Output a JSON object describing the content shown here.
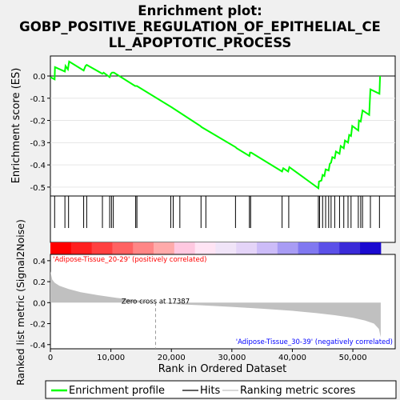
{
  "chart_data": {
    "type": "line",
    "title_lines": [
      "Enrichment plot:",
      "GOBP_POSITIVE_REGULATION_OF_EPITHELIAL_CE",
      "LL_APOPTOTIC_PROCESS"
    ],
    "es_panel": {
      "ylabel": "Enrichment score (ES)",
      "yticks": [
        0.0,
        -0.1,
        -0.2,
        -0.3,
        -0.4,
        -0.5
      ],
      "ytick_labels": [
        "0.0",
        "-0.1",
        "-0.2",
        "-0.3",
        "-0.4",
        "-0.5"
      ],
      "ylim": [
        -0.54,
        0.09
      ],
      "series": {
        "name": "Enrichment profile",
        "color": "#00ff00",
        "points": [
          [
            0,
            -0.005
          ],
          [
            700,
            -0.015
          ],
          [
            750,
            0.04
          ],
          [
            2400,
            0.02
          ],
          [
            2500,
            0.045
          ],
          [
            2900,
            0.03
          ],
          [
            3100,
            0.065
          ],
          [
            5500,
            0.025
          ],
          [
            5800,
            0.045
          ],
          [
            6000,
            0.05
          ],
          [
            8600,
            0.01
          ],
          [
            8800,
            0.015
          ],
          [
            9800,
            -0.005
          ],
          [
            10000,
            0.01
          ],
          [
            10200,
            0.015
          ],
          [
            10500,
            0.015
          ],
          [
            14000,
            -0.045
          ],
          [
            14300,
            -0.045
          ],
          [
            20000,
            -0.14
          ],
          [
            24800,
            -0.225
          ],
          [
            25000,
            -0.23
          ],
          [
            30600,
            -0.32
          ],
          [
            30800,
            -0.325
          ],
          [
            32900,
            -0.36
          ],
          [
            33000,
            -0.345
          ],
          [
            33200,
            -0.345
          ],
          [
            38300,
            -0.43
          ],
          [
            38500,
            -0.415
          ],
          [
            39300,
            -0.43
          ],
          [
            39500,
            -0.41
          ],
          [
            44300,
            -0.505
          ],
          [
            44400,
            -0.475
          ],
          [
            44800,
            -0.47
          ],
          [
            45000,
            -0.445
          ],
          [
            45300,
            -0.45
          ],
          [
            45500,
            -0.42
          ],
          [
            46000,
            -0.425
          ],
          [
            46200,
            -0.395
          ],
          [
            46400,
            -0.39
          ],
          [
            46600,
            -0.365
          ],
          [
            47000,
            -0.37
          ],
          [
            47200,
            -0.34
          ],
          [
            47800,
            -0.35
          ],
          [
            48000,
            -0.315
          ],
          [
            48500,
            -0.325
          ],
          [
            48700,
            -0.29
          ],
          [
            49200,
            -0.3
          ],
          [
            49400,
            -0.265
          ],
          [
            49700,
            -0.27
          ],
          [
            49900,
            -0.225
          ],
          [
            50900,
            -0.245
          ],
          [
            51000,
            -0.2
          ],
          [
            51300,
            -0.205
          ],
          [
            51600,
            -0.155
          ],
          [
            52700,
            -0.175
          ],
          [
            52900,
            -0.06
          ],
          [
            54400,
            -0.08
          ],
          [
            54500,
            0.0
          ]
        ]
      },
      "baseline": 0.0
    },
    "hits": {
      "name": "Hits",
      "positions": [
        700,
        2400,
        3000,
        5500,
        6000,
        8600,
        9800,
        10100,
        10400,
        14100,
        14300,
        19900,
        20300,
        21400,
        24900,
        25700,
        30600,
        32900,
        33100,
        38300,
        39400,
        44300,
        44500,
        45000,
        45500,
        46000,
        46400,
        47000,
        47800,
        48500,
        49200,
        49700,
        50900,
        51300,
        51600,
        52900,
        54400
      ]
    },
    "heatmap": {
      "colors": [
        "#ff0000",
        "#ff2020",
        "#ff4040",
        "#ff6262",
        "#ff8686",
        "#ffaaaa",
        "#ffc8e0",
        "#ffe4f4",
        "#f0e4f8",
        "#e4d4f8",
        "#ccbcf8",
        "#a89cf4",
        "#8078f0",
        "#5b50e8",
        "#3a2ad8",
        "#1a0ad0"
      ]
    },
    "metric_panel": {
      "ylabel": "Ranked list metric (Signal2Noise)",
      "yticks": [
        0.4,
        0.2,
        0.0,
        -0.2,
        -0.4
      ],
      "ytick_labels": [
        "0.4",
        "0.2",
        "0.0",
        "-0.2",
        "-0.4"
      ],
      "ylim": [
        -0.44,
        0.46
      ],
      "fill_color": "#c0c0c0",
      "points": [
        [
          0,
          0.3
        ],
        [
          300,
          0.22
        ],
        [
          700,
          0.19
        ],
        [
          1500,
          0.16
        ],
        [
          3000,
          0.13
        ],
        [
          5000,
          0.1
        ],
        [
          8000,
          0.07
        ],
        [
          11000,
          0.045
        ],
        [
          14000,
          0.025
        ],
        [
          17387,
          0.0
        ],
        [
          21000,
          -0.015
        ],
        [
          25000,
          -0.025
        ],
        [
          30000,
          -0.04
        ],
        [
          35000,
          -0.058
        ],
        [
          40000,
          -0.078
        ],
        [
          44000,
          -0.1
        ],
        [
          47000,
          -0.12
        ],
        [
          50000,
          -0.145
        ],
        [
          52000,
          -0.17
        ],
        [
          53500,
          -0.2
        ],
        [
          54300,
          -0.25
        ],
        [
          54600,
          -0.33
        ]
      ],
      "zero_cross_x": 17387,
      "zero_cross_label": "Zero cross at 17387",
      "pos_label": "'Adipose-Tissue_20-29' (positively correlated)",
      "neg_label": "'Adipose-Tissue_30-39' (negatively correlated)",
      "pos_color": "#ff0000",
      "neg_color": "#0000ff"
    },
    "xaxis": {
      "label": "Rank in Ordered Dataset",
      "ticks": [
        0,
        10000,
        20000,
        30000,
        40000,
        50000
      ],
      "tick_labels": [
        "0",
        "10,000",
        "20,000",
        "30,000",
        "40,000",
        "50,000"
      ],
      "xlim": [
        0,
        57000
      ]
    },
    "legend": {
      "items": [
        "Enrichment profile",
        "Hits",
        "Ranking metric scores"
      ],
      "colors": [
        "#00ff00",
        "#000000",
        "#c0c0c0"
      ]
    }
  }
}
